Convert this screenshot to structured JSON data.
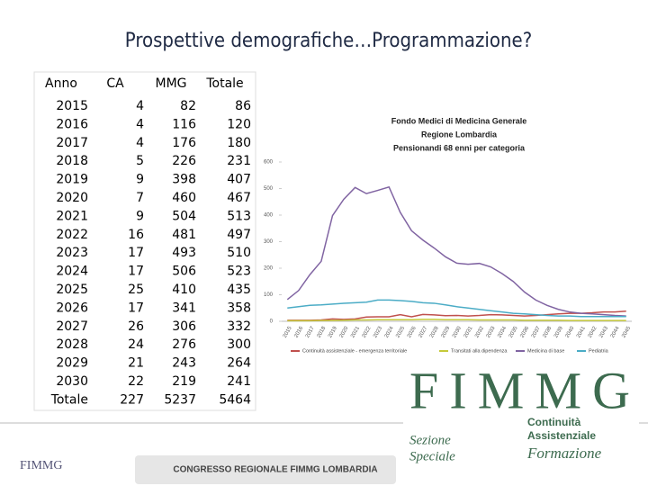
{
  "title": "Prospettive demografiche…Programmazione?",
  "table": {
    "header": [
      "Anno",
      "CA",
      "MMG",
      "Totale"
    ],
    "rows": [
      {
        "cells": [
          "2015",
          4,
          82,
          86
        ]
      },
      {
        "cells": [
          "2016",
          4,
          116,
          120
        ]
      },
      {
        "cells": [
          "2017",
          4,
          176,
          180
        ]
      },
      {
        "cells": [
          "2018",
          5,
          226,
          231
        ]
      },
      {
        "cells": [
          "2019",
          9,
          398,
          407
        ]
      },
      {
        "cells": [
          "2020",
          7,
          460,
          467
        ]
      },
      {
        "cells": [
          "2021",
          9,
          504,
          513
        ],
        "color": "#c00000"
      },
      {
        "cells": [
          "2022",
          16,
          481,
          497
        ]
      },
      {
        "cells": [
          "2023",
          17,
          493,
          510
        ]
      },
      {
        "cells": [
          "2024",
          17,
          506,
          523
        ]
      },
      {
        "cells": [
          "2025",
          25,
          410,
          435
        ]
      },
      {
        "cells": [
          "2026",
          17,
          341,
          358
        ]
      },
      {
        "cells": [
          "2027",
          26,
          306,
          332
        ]
      },
      {
        "cells": [
          "2028",
          24,
          276,
          300
        ]
      },
      {
        "cells": [
          "2029",
          21,
          243,
          264
        ]
      },
      {
        "cells": [
          "2030",
          22,
          219,
          241
        ]
      },
      {
        "cells": [
          "Totale",
          227,
          5237,
          5464
        ]
      }
    ]
  },
  "chart_data": {
    "type": "line",
    "title_lines": [
      "Fondo Medici di Medicina Generale",
      "Regione Lombardia",
      "Pensionandi 68 enni per  categoria"
    ],
    "categories": [
      "2015",
      "2016",
      "2017",
      "2018",
      "2019",
      "2020",
      "2021",
      "2022",
      "2023",
      "2024",
      "2025",
      "2026",
      "2027",
      "2028",
      "2029",
      "2030",
      "2031",
      "2032",
      "2033",
      "2034",
      "2035",
      "2036",
      "2037",
      "2038",
      "2039",
      "2040",
      "2041",
      "2042",
      "2043",
      "2044",
      "2045"
    ],
    "ylim": [
      0,
      600
    ],
    "yticks": [
      0,
      100,
      200,
      300,
      400,
      500,
      600
    ],
    "legend": "bottom",
    "series": [
      {
        "name": "Continuità assistenziale - emergenza territoriale",
        "color": "#c0504d",
        "values": [
          4,
          4,
          4,
          5,
          9,
          7,
          9,
          16,
          17,
          17,
          25,
          17,
          26,
          24,
          21,
          22,
          20,
          22,
          25,
          24,
          22,
          20,
          22,
          25,
          28,
          30,
          30,
          32,
          35,
          35,
          38
        ]
      },
      {
        "name": "Transitati alla dipendenza",
        "color": "#c5c93a",
        "values": [
          2,
          2,
          2,
          3,
          3,
          4,
          5,
          5,
          6,
          6,
          6,
          6,
          7,
          7,
          6,
          6,
          6,
          5,
          5,
          5,
          5,
          4,
          4,
          4,
          4,
          3,
          3,
          3,
          3,
          3,
          3
        ]
      },
      {
        "name": "Medicina di base",
        "color": "#8064a2",
        "values": [
          82,
          116,
          176,
          226,
          398,
          460,
          504,
          481,
          493,
          506,
          410,
          341,
          306,
          276,
          243,
          219,
          215,
          218,
          205,
          180,
          150,
          110,
          80,
          60,
          45,
          35,
          30,
          28,
          25,
          22,
          20
        ]
      },
      {
        "name": "Pediatria",
        "color": "#4bacc6",
        "values": [
          50,
          55,
          60,
          62,
          65,
          68,
          70,
          72,
          80,
          80,
          78,
          75,
          70,
          68,
          62,
          55,
          50,
          45,
          40,
          35,
          30,
          28,
          25,
          22,
          20,
          20,
          18,
          18,
          18,
          18,
          18
        ]
      }
    ]
  },
  "logo": {
    "letters": "FIMMG",
    "section": [
      "Sezione",
      "Speciale"
    ],
    "lines": [
      "Continuità",
      "Assistenziale",
      "Formazione"
    ]
  },
  "footer": {
    "small_logo": "FIMMG",
    "banner": "CONGRESSO REGIONALE FIMMG LOMBARDIA"
  }
}
